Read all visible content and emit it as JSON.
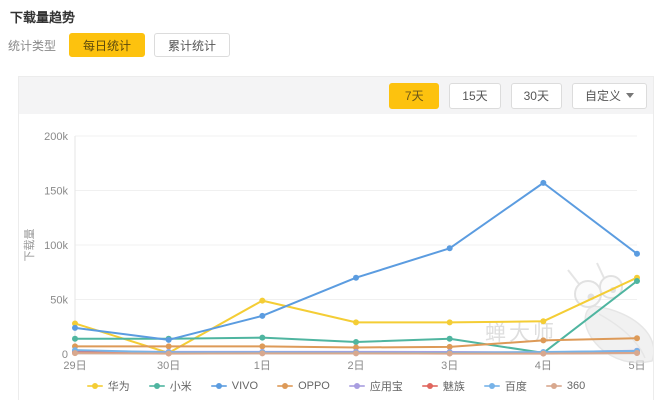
{
  "page_title": "下载量趋势",
  "filter": {
    "label": "统计类型",
    "options": [
      {
        "label": "每日统计",
        "selected": true
      },
      {
        "label": "累计统计",
        "selected": false
      }
    ]
  },
  "range_buttons": [
    {
      "label": "7天",
      "selected": true
    },
    {
      "label": "15天",
      "selected": false
    },
    {
      "label": "30天",
      "selected": false
    },
    {
      "label": "自定义",
      "selected": false,
      "has_dropdown": true
    }
  ],
  "watermark": {
    "text": "蝉大师"
  },
  "colors": {
    "accent_yellow": "#fdc20e",
    "toolbar_bg": "#f4f4f5",
    "card_border": "#ececec",
    "grid_line": "#f0f0f0",
    "axis_line": "#cccccc",
    "tick_text": "#8a8a8a",
    "watermark_gray": "#cdcdcd"
  },
  "chart_data": {
    "type": "line",
    "x": [
      "29日",
      "30日",
      "1日",
      "2日",
      "3日",
      "4日",
      "5日"
    ],
    "ylabel": "下载量",
    "ylim": [
      0,
      200000
    ],
    "yticks": [
      {
        "label": "0",
        "value": 0
      },
      {
        "label": "50k",
        "value": 50000
      },
      {
        "label": "100k",
        "value": 100000
      },
      {
        "label": "150k",
        "value": 150000
      },
      {
        "label": "200k",
        "value": 200000
      }
    ],
    "grid": true,
    "legend_position": "bottom",
    "series": [
      {
        "name": "华为",
        "color": "#f4cd35",
        "values": [
          28000,
          1000,
          49000,
          29000,
          29000,
          30000,
          70000
        ]
      },
      {
        "name": "小米",
        "color": "#4fb5a0",
        "values": [
          14000,
          14000,
          15000,
          11000,
          14000,
          1000,
          67000
        ]
      },
      {
        "name": "VIVO",
        "color": "#5b9ce0",
        "values": [
          24000,
          13000,
          35000,
          70000,
          97000,
          157000,
          92000
        ]
      },
      {
        "name": "OPPO",
        "color": "#dd9a58",
        "values": [
          7000,
          7000,
          7000,
          6000,
          6500,
          12500,
          14500
        ]
      },
      {
        "name": "应用宝",
        "color": "#a89de0",
        "values": [
          2500,
          2000,
          2000,
          2000,
          1800,
          1500,
          3000
        ]
      },
      {
        "name": "魅族",
        "color": "#e0665e",
        "values": [
          1500,
          800,
          1000,
          900,
          700,
          600,
          1200
        ]
      },
      {
        "name": "百度",
        "color": "#77b3e8",
        "values": [
          3500,
          1500,
          1500,
          1200,
          1000,
          1800,
          2800
        ]
      },
      {
        "name": "360",
        "color": "#d8a88e",
        "values": [
          800,
          400,
          600,
          600,
          400,
          400,
          900
        ]
      }
    ]
  }
}
